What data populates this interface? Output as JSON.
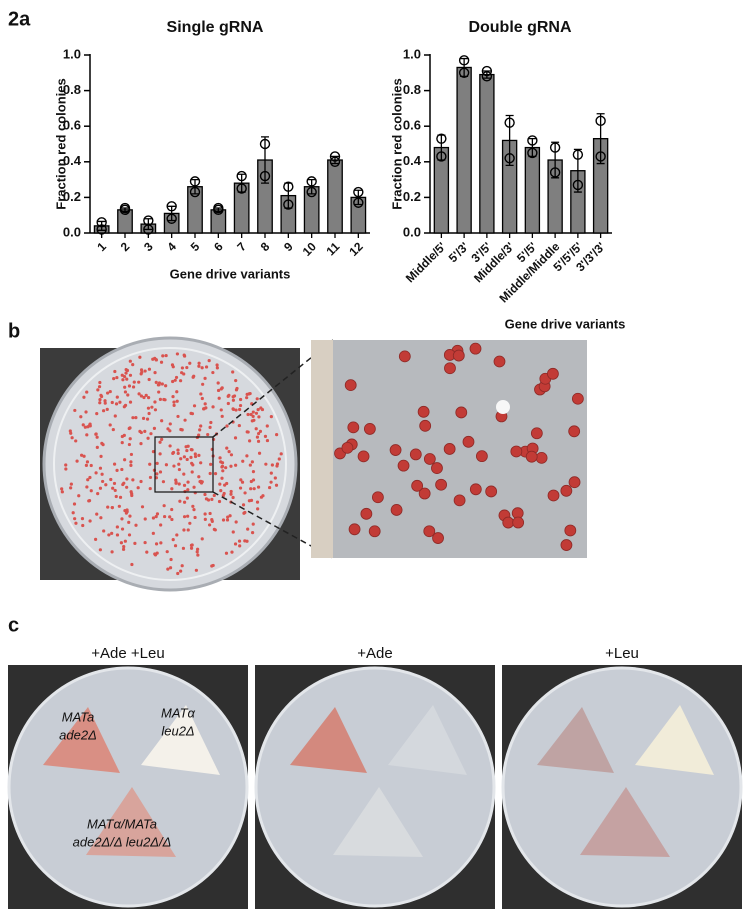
{
  "panel_labels": {
    "a": "2a",
    "b": "b",
    "c": "c"
  },
  "chart_data": [
    {
      "type": "bar",
      "title": "Single gRNA",
      "y_label": "Fraction red colonies",
      "x_label": "Gene drive variants",
      "categories": [
        "1",
        "2",
        "3",
        "4",
        "5",
        "6",
        "7",
        "8",
        "9",
        "10",
        "11",
        "12"
      ],
      "values": [
        0.04,
        0.13,
        0.05,
        0.11,
        0.26,
        0.13,
        0.28,
        0.41,
        0.21,
        0.26,
        0.41,
        0.2
      ],
      "errors": [
        0.025,
        0.01,
        0.03,
        0.04,
        0.04,
        0.01,
        0.05,
        0.13,
        0.07,
        0.04,
        0.02,
        0.04
      ],
      "points": [
        [
          0.02,
          0.06
        ],
        [
          0.13,
          0.14
        ],
        [
          0.02,
          0.07
        ],
        [
          0.08,
          0.15
        ],
        [
          0.23,
          0.29
        ],
        [
          0.13,
          0.14
        ],
        [
          0.25,
          0.32
        ],
        [
          0.32,
          0.5
        ],
        [
          0.16,
          0.26
        ],
        [
          0.23,
          0.29
        ],
        [
          0.4,
          0.43
        ],
        [
          0.17,
          0.23
        ]
      ],
      "color": "#7f7f7f",
      "ylim": [
        0,
        1
      ],
      "yticks": [
        {
          "value": 0,
          "label": "0.0"
        },
        0.2,
        0.4,
        0.6,
        0.8,
        {
          "value": 1,
          "label": "1.0"
        }
      ]
    },
    {
      "type": "bar",
      "title": "Double gRNA",
      "y_label": "Fraction red colonies",
      "x_label": "Gene drive variants",
      "categories": [
        "Middle/5'",
        "5'/3'",
        "3'/5'",
        "Middle/3'",
        "5'/5'",
        "Middle/Middle",
        "5'/5'/5'",
        "3'/3'/3'"
      ],
      "values": [
        0.48,
        0.93,
        0.89,
        0.52,
        0.48,
        0.41,
        0.35,
        0.53
      ],
      "errors": [
        0.07,
        0.05,
        0.02,
        0.14,
        0.05,
        0.1,
        0.12,
        0.14
      ],
      "points": [
        [
          0.43,
          0.53
        ],
        [
          0.9,
          0.97
        ],
        [
          0.88,
          0.91
        ],
        [
          0.42,
          0.62
        ],
        [
          0.45,
          0.52
        ],
        [
          0.34,
          0.48
        ],
        [
          0.27,
          0.44
        ],
        [
          0.43,
          0.63
        ]
      ],
      "color": "#7f7f7f",
      "ylim": [
        0,
        1
      ],
      "yticks": [
        {
          "value": 0,
          "label": "0.0"
        },
        0.2,
        0.4,
        0.6,
        0.8,
        {
          "value": 1,
          "label": "1.0"
        }
      ]
    }
  ],
  "plates": {
    "conditions": [
      "+Ade +Leu",
      "+Ade",
      "+Leu"
    ],
    "strains": [
      [
        "MATa",
        "ade2Δ"
      ],
      [
        "MATα",
        "leu2Δ"
      ],
      [
        "MATα/MATa",
        "ade2Δ/Δ leu2Δ/Δ"
      ]
    ]
  }
}
